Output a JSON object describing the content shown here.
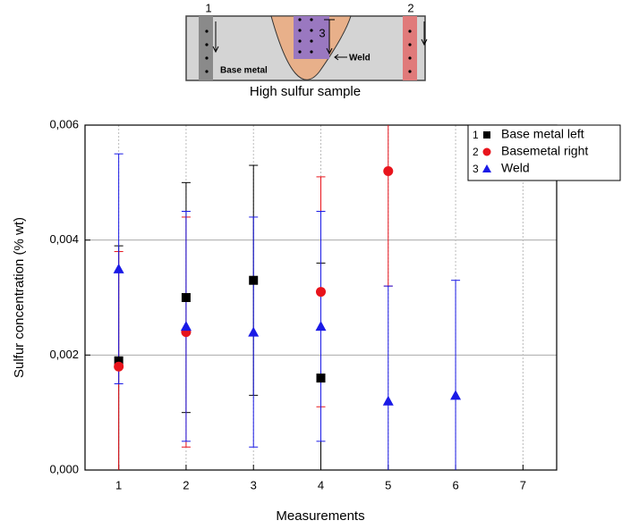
{
  "diagram": {
    "labels": {
      "one": "1",
      "two": "2",
      "three": "3",
      "weld": "Weld",
      "base_metal": "Base metal"
    },
    "caption": "High sulfur sample"
  },
  "chart_data": {
    "type": "scatter",
    "xlabel": "Measurements",
    "ylabel": "Sulfur concentration (% wt)",
    "xlim": [
      0.5,
      7.5
    ],
    "xticks": [
      1,
      2,
      3,
      4,
      5,
      6,
      7
    ],
    "ylim": [
      0,
      0.006
    ],
    "yticks": [
      {
        "value": 0,
        "label": "0,000"
      },
      {
        "value": 0.002,
        "label": "0,002"
      },
      {
        "value": 0.004,
        "label": "0,004"
      },
      {
        "value": 0.006,
        "label": "0,006"
      }
    ],
    "grid": true,
    "legend": "upper right",
    "series": [
      {
        "name": "Base metal left",
        "legend_number": "1",
        "marker": "square",
        "color": "#000000",
        "x": [
          1,
          2,
          3,
          4
        ],
        "values": [
          0.0019,
          0.003,
          0.0033,
          0.0016
        ],
        "errors": [
          0.002,
          0.002,
          0.002,
          0.002
        ]
      },
      {
        "name": "Basemetal right",
        "legend_number": "2",
        "marker": "circle",
        "color": "#e8141c",
        "x": [
          1,
          2,
          4,
          5
        ],
        "values": [
          0.0018,
          0.0024,
          0.0031,
          0.0052
        ],
        "errors": [
          0.002,
          0.002,
          0.002,
          0.002
        ]
      },
      {
        "name": "Weld",
        "legend_number": "3",
        "marker": "triangle",
        "color": "#1a1ae6",
        "x": [
          1,
          2,
          3,
          4,
          5,
          6
        ],
        "values": [
          0.0035,
          0.0025,
          0.0024,
          0.0025,
          0.0012,
          0.0013
        ],
        "errors": [
          0.002,
          0.002,
          0.002,
          0.002,
          0.002,
          0.002
        ]
      }
    ]
  }
}
